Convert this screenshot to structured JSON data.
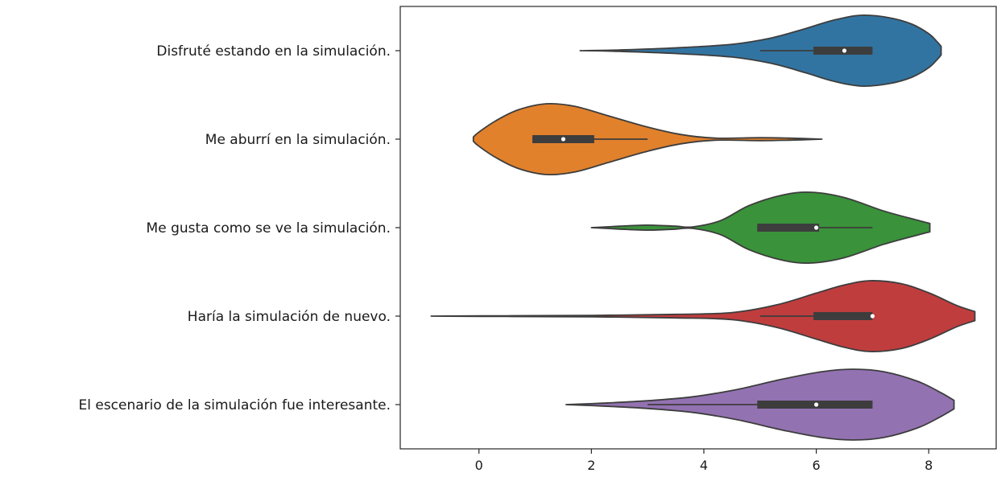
{
  "chart_data": {
    "type": "violin",
    "orientation": "horizontal",
    "title": "",
    "xlabel": "",
    "ylabel": "",
    "xlim": [
      -1.4,
      9.2
    ],
    "xticks": [
      0,
      2,
      4,
      6,
      8
    ],
    "xtick_labels": [
      "0",
      "2",
      "4",
      "6",
      "8"
    ],
    "grid": false,
    "legend": "none",
    "categories": [
      "Disfruté estando en la simulación.",
      "Me aburrí en la simulación.",
      "Me gusta como se ve la simulación.",
      "Haría la simulación de nuevo.",
      "El escenario de la simulación fue interesante."
    ],
    "series": [
      {
        "color": "#3274a1",
        "median": 6.5,
        "q1": 5.95,
        "q3": 7.0,
        "whisker_low": 5.0,
        "whisker_high": 7.0,
        "density": [
          [
            1.8,
            0.0
          ],
          [
            2.5,
            0.02
          ],
          [
            3.5,
            0.08
          ],
          [
            4.5,
            0.18
          ],
          [
            5.2,
            0.36
          ],
          [
            5.8,
            0.62
          ],
          [
            6.3,
            0.86
          ],
          [
            6.8,
            1.0
          ],
          [
            7.3,
            0.93
          ],
          [
            7.7,
            0.75
          ],
          [
            8.0,
            0.48
          ],
          [
            8.15,
            0.25
          ],
          [
            8.22,
            0.12
          ]
        ]
      },
      {
        "color": "#e1812c",
        "median": 1.5,
        "q1": 0.95,
        "q3": 2.05,
        "whisker_low": 0.95,
        "whisker_high": 3.0,
        "density": [
          [
            -0.1,
            0.06
          ],
          [
            0.0,
            0.2
          ],
          [
            0.3,
            0.52
          ],
          [
            0.7,
            0.83
          ],
          [
            1.2,
            1.0
          ],
          [
            1.7,
            0.93
          ],
          [
            2.3,
            0.66
          ],
          [
            3.0,
            0.34
          ],
          [
            3.6,
            0.13
          ],
          [
            4.2,
            0.03
          ],
          [
            5.0,
            0.04
          ],
          [
            5.5,
            0.03
          ],
          [
            6.1,
            0.0
          ]
        ]
      },
      {
        "color": "#3a923a",
        "median": 6.0,
        "q1": 4.95,
        "q3": 6.05,
        "whisker_low": 4.95,
        "whisker_high": 7.0,
        "density": [
          [
            2.0,
            0.0
          ],
          [
            2.5,
            0.04
          ],
          [
            3.0,
            0.07
          ],
          [
            3.5,
            0.04
          ],
          [
            3.8,
            0.02
          ],
          [
            4.3,
            0.2
          ],
          [
            4.8,
            0.62
          ],
          [
            5.4,
            0.92
          ],
          [
            5.9,
            1.0
          ],
          [
            6.5,
            0.85
          ],
          [
            7.2,
            0.47
          ],
          [
            7.8,
            0.21
          ],
          [
            8.02,
            0.12
          ]
        ]
      },
      {
        "color": "#c03d3e",
        "median": 7.0,
        "q1": 5.95,
        "q3": 7.0,
        "whisker_low": 5.0,
        "whisker_high": 7.0,
        "density": [
          [
            -0.85,
            0.0
          ],
          [
            0.5,
            0.01
          ],
          [
            2.0,
            0.02
          ],
          [
            3.5,
            0.05
          ],
          [
            4.5,
            0.1
          ],
          [
            5.3,
            0.32
          ],
          [
            6.0,
            0.65
          ],
          [
            6.5,
            0.88
          ],
          [
            6.95,
            1.0
          ],
          [
            7.5,
            0.92
          ],
          [
            8.0,
            0.66
          ],
          [
            8.5,
            0.3
          ],
          [
            8.82,
            0.13
          ]
        ]
      },
      {
        "color": "#9372b2",
        "median": 6.0,
        "q1": 4.95,
        "q3": 7.0,
        "whisker_low": 3.0,
        "whisker_high": 7.0,
        "density": [
          [
            1.55,
            0.0
          ],
          [
            2.2,
            0.04
          ],
          [
            3.0,
            0.11
          ],
          [
            3.8,
            0.22
          ],
          [
            4.6,
            0.43
          ],
          [
            5.4,
            0.72
          ],
          [
            6.1,
            0.93
          ],
          [
            6.65,
            1.0
          ],
          [
            7.2,
            0.93
          ],
          [
            7.8,
            0.66
          ],
          [
            8.2,
            0.35
          ],
          [
            8.45,
            0.12
          ]
        ]
      }
    ]
  }
}
